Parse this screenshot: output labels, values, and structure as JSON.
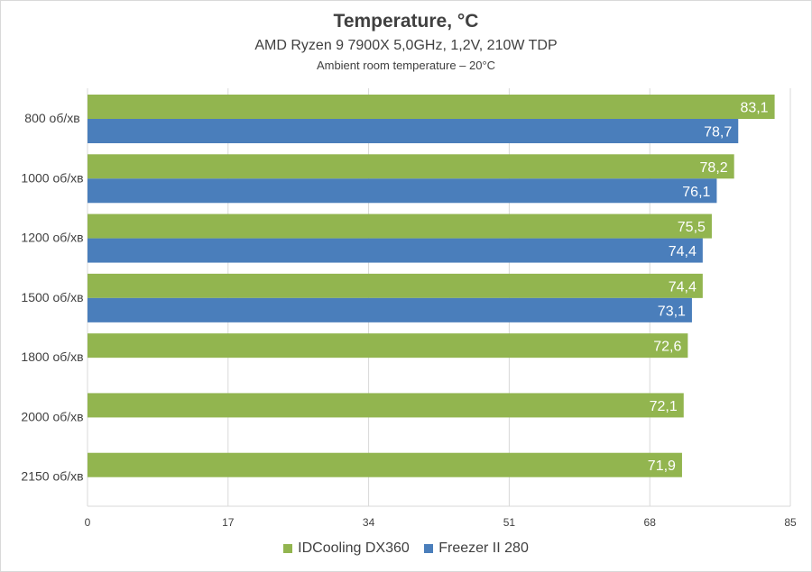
{
  "chart_data": {
    "type": "bar",
    "orientation": "horizontal",
    "title": "Temperature, °C",
    "subtitle": "AMD Ryzen 9 7900X 5,0GHz, 1,2V, 210W TDP",
    "note": "Ambient room temperature – 20°C",
    "categories": [
      "800 об/хв",
      "1000 об/хв",
      "1200 об/хв",
      "1500 об/хв",
      "1800 об/хв",
      "2000 об/хв",
      "2150 об/хв"
    ],
    "series": [
      {
        "name": "IDCooling DX360",
        "color": "#92b54f",
        "values": [
          83.1,
          78.2,
          75.5,
          74.4,
          72.6,
          72.1,
          71.9
        ],
        "labels": [
          "83,1",
          "78,2",
          "75,5",
          "74,4",
          "72,6",
          "72,1",
          "71,9"
        ]
      },
      {
        "name": "Freezer II 280",
        "color": "#4a7ebb",
        "values": [
          78.7,
          76.1,
          74.4,
          73.1,
          null,
          null,
          null
        ],
        "labels": [
          "78,7",
          "76,1",
          "74,4",
          "73,1",
          null,
          null,
          null
        ]
      }
    ],
    "xlim": [
      0,
      85
    ],
    "xticks": [
      "0",
      "17",
      "34",
      "51",
      "68",
      "85"
    ],
    "xtick_values": [
      0,
      17,
      34,
      51,
      68,
      85
    ],
    "grid": true,
    "legend": "bottom"
  }
}
